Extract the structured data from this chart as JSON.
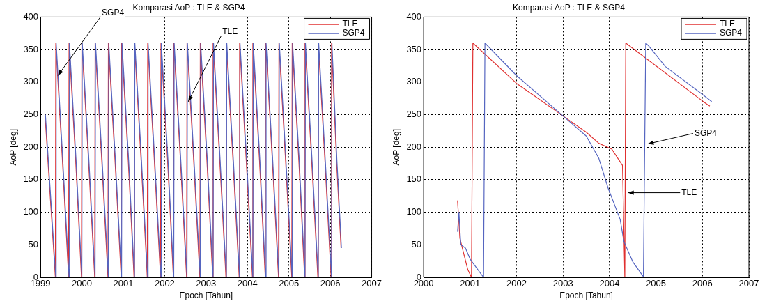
{
  "chart_data": [
    {
      "type": "line",
      "title": "Komparasi AoP : TLE & SGP4",
      "xlabel": "Epoch [Tahun]",
      "ylabel": "AoP [deg]",
      "xlim": [
        1999,
        2007
      ],
      "xticks": [
        1999,
        2000,
        2001,
        2002,
        2003,
        2004,
        2005,
        2006,
        2007
      ],
      "ylim": [
        0,
        400
      ],
      "yticks": [
        0,
        50,
        100,
        150,
        200,
        250,
        300,
        350,
        400
      ],
      "grid": true,
      "legend": "top right",
      "line_style": "solid",
      "marker": "none",
      "annotations": [
        {
          "text": "SGP4",
          "x": 1999.37,
          "y": 310
        },
        {
          "text": "TLE",
          "x": 2002.52,
          "y": 270
        }
      ],
      "series": [
        {
          "name": "TLE",
          "color": "#e03030",
          "x": [
            1999.11,
            1999.36,
            1999.37,
            1999.53,
            1999.68,
            1999.69,
            1999.85,
            1999.99,
            2000.0,
            2000.16,
            2000.31,
            2000.32,
            2000.48,
            2000.63,
            2000.64,
            2000.8,
            2000.95,
            2000.96,
            2001.12,
            2001.26,
            2001.27,
            2001.43,
            2001.58,
            2001.59,
            2001.75,
            2001.9,
            2001.91,
            2002.07,
            2002.21,
            2002.22,
            2002.38,
            2002.53,
            2002.54,
            2002.7,
            2002.85,
            2002.86,
            2003.02,
            2003.16,
            2003.17,
            2003.33,
            2003.48,
            2003.49,
            2003.65,
            2003.8,
            2003.81,
            2003.97,
            2004.12,
            2004.13,
            2004.29,
            2004.43,
            2004.44,
            2004.6,
            2004.75,
            2004.76,
            2004.92,
            2005.07,
            2005.08,
            2005.24,
            2005.38,
            2005.39,
            2005.55,
            2005.7,
            2005.71,
            2005.87,
            2006.02,
            2006.03,
            2006.15,
            2006.26
          ],
          "values": [
            250,
            0,
            360,
            180,
            0,
            360,
            180,
            0,
            360,
            180,
            0,
            360,
            180,
            0,
            360,
            180,
            0,
            360,
            180,
            0,
            360,
            180,
            0,
            360,
            180,
            0,
            360,
            180,
            0,
            360,
            180,
            0,
            360,
            180,
            0,
            360,
            180,
            0,
            360,
            180,
            0,
            360,
            180,
            0,
            360,
            180,
            0,
            360,
            180,
            0,
            360,
            180,
            0,
            360,
            180,
            0,
            360,
            180,
            0,
            360,
            180,
            0,
            360,
            180,
            0,
            360,
            180,
            45
          ]
        },
        {
          "name": "SGP4",
          "color": "#5565c0",
          "x": [
            1999.12,
            1999.37,
            1999.38,
            1999.54,
            1999.69,
            1999.7,
            1999.86,
            2000.0,
            2000.01,
            2000.17,
            2000.32,
            2000.33,
            2000.49,
            2000.64,
            2000.65,
            2000.81,
            2000.96,
            2000.97,
            2001.13,
            2001.27,
            2001.28,
            2001.44,
            2001.59,
            2001.6,
            2001.76,
            2001.91,
            2001.92,
            2002.08,
            2002.22,
            2002.23,
            2002.39,
            2002.54,
            2002.55,
            2002.71,
            2002.86,
            2002.87,
            2003.03,
            2003.17,
            2003.18,
            2003.34,
            2003.49,
            2003.5,
            2003.66,
            2003.81,
            2003.82,
            2003.98,
            2004.13,
            2004.14,
            2004.3,
            2004.44,
            2004.45,
            2004.61,
            2004.76,
            2004.77,
            2004.93,
            2005.08,
            2005.09,
            2005.25,
            2005.39,
            2005.4,
            2005.56,
            2005.71,
            2005.72,
            2005.88,
            2006.03,
            2006.04,
            2006.16,
            2006.27
          ],
          "values": [
            250,
            0,
            360,
            180,
            0,
            360,
            180,
            0,
            360,
            180,
            0,
            360,
            180,
            0,
            360,
            180,
            0,
            360,
            180,
            0,
            360,
            180,
            0,
            360,
            180,
            0,
            360,
            180,
            0,
            360,
            180,
            0,
            360,
            180,
            0,
            360,
            180,
            0,
            360,
            180,
            0,
            360,
            180,
            0,
            360,
            180,
            0,
            360,
            180,
            0,
            360,
            180,
            0,
            360,
            180,
            0,
            360,
            180,
            0,
            360,
            180,
            0,
            360,
            180,
            0,
            360,
            180,
            45
          ]
        }
      ]
    },
    {
      "type": "line",
      "title": "Komparasi AoP : TLE & SGP4",
      "xlabel": "Epoch [Tahun]",
      "ylabel": "AoP [deg]",
      "xlim": [
        2000,
        2007
      ],
      "xticks": [
        2000,
        2001,
        2002,
        2003,
        2004,
        2005,
        2006,
        2007
      ],
      "ylim": [
        0,
        400
      ],
      "yticks": [
        0,
        50,
        100,
        150,
        200,
        250,
        300,
        350,
        400
      ],
      "grid": true,
      "legend": "top right",
      "line_style": "solid",
      "marker": "none",
      "annotations": [
        {
          "text": "SGP4",
          "x": 2004.78,
          "y": 205
        },
        {
          "text": "TLE",
          "x": 2004.35,
          "y": 130
        }
      ],
      "series": [
        {
          "name": "TLE",
          "color": "#e03030",
          "x": [
            2000.73,
            2000.75,
            2000.78,
            2000.85,
            2000.95,
            2001.03,
            2001.06,
            2002.0,
            2003.0,
            2003.5,
            2003.77,
            2004.05,
            2004.28,
            2004.33,
            2004.35,
            2005.0,
            2006.0,
            2006.16
          ],
          "values": [
            118,
            95,
            60,
            40,
            12,
            0,
            360,
            298,
            248,
            223,
            206,
            197,
            172,
            0,
            360,
            325,
            271,
            263
          ]
        },
        {
          "name": "SGP4",
          "color": "#5565c0",
          "x": [
            2000.73,
            2000.76,
            2000.8,
            2000.9,
            2001.0,
            2001.29,
            2001.32,
            2002.0,
            2003.0,
            2003.5,
            2003.77,
            2003.97,
            2004.23,
            2004.31,
            2004.5,
            2004.73,
            2004.78,
            2004.85,
            2005.2,
            2006.0,
            2006.2
          ],
          "values": [
            70,
            100,
            50,
            45,
            28,
            0,
            360,
            310,
            248,
            217,
            183,
            137,
            89,
            55,
            24,
            1,
            360,
            355,
            324,
            281,
            270
          ]
        }
      ]
    }
  ]
}
